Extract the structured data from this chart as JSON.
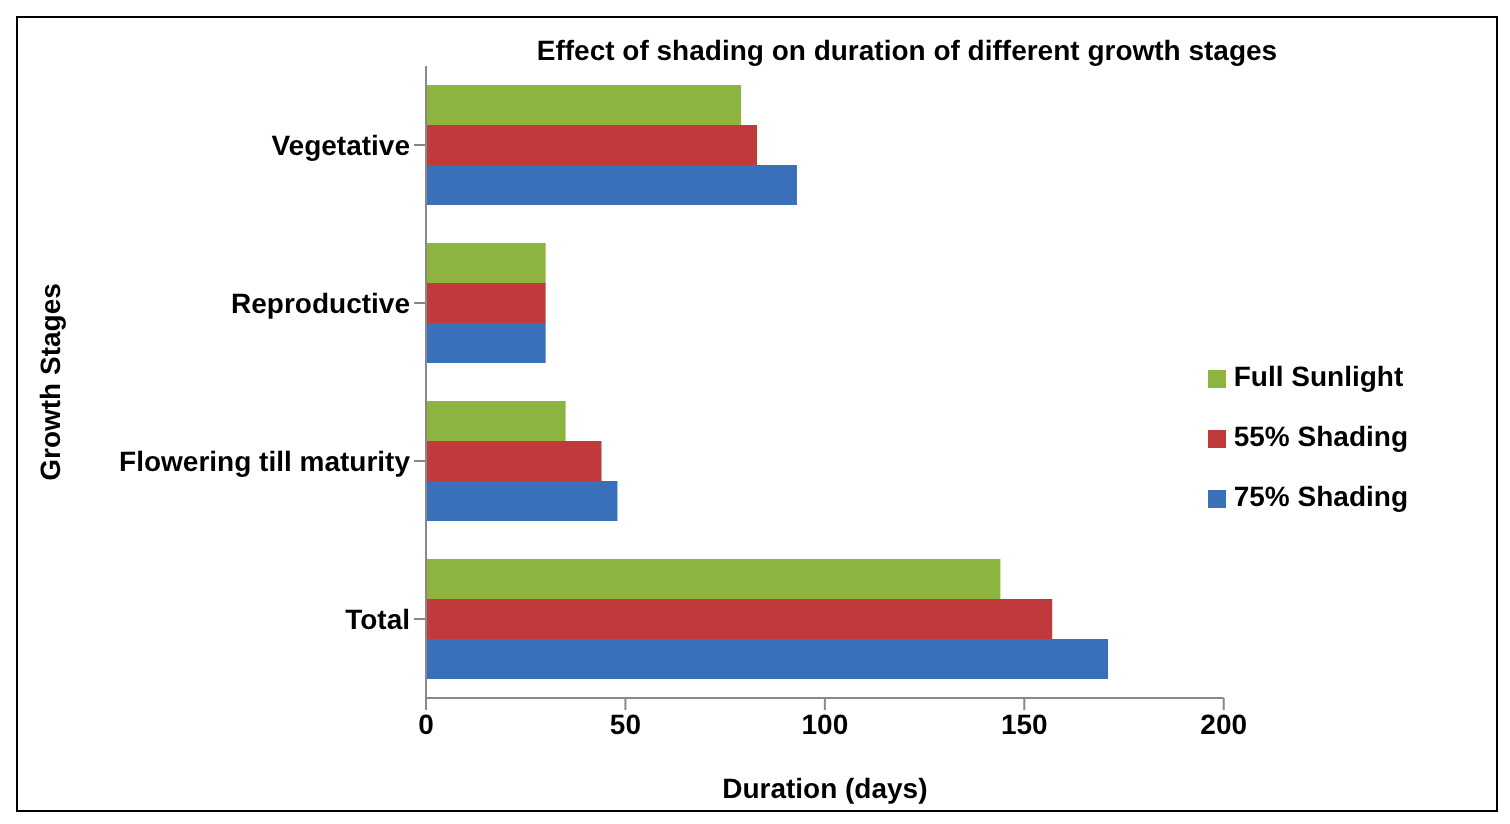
{
  "chart_data": {
    "type": "bar",
    "orientation": "horizontal",
    "title": "Effect of shading on duration of different growth stages",
    "xlabel": "Duration (days)",
    "ylabel": "Growth Stages",
    "categories": [
      "Vegetative",
      "Reproductive",
      "Flowering till maturity",
      "Total"
    ],
    "series": [
      {
        "name": "Full Sunlight",
        "color": "#8db43e",
        "values": [
          79,
          30,
          35,
          144
        ]
      },
      {
        "name": "55% Shading",
        "color": "#c0393b",
        "values": [
          83,
          30,
          44,
          157
        ]
      },
      {
        "name": "75% Shading",
        "color": "#3a6fba",
        "values": [
          93,
          30,
          48,
          171
        ]
      }
    ],
    "xlim": [
      0,
      200
    ],
    "xticks": [
      0,
      50,
      100,
      150,
      200
    ],
    "grid": false,
    "legend": "right"
  }
}
